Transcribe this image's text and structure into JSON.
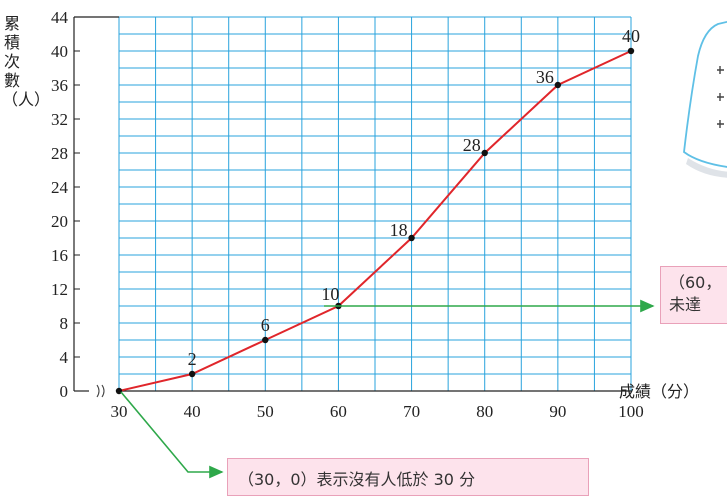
{
  "chart_data": {
    "type": "line",
    "x": [
      30,
      40,
      50,
      60,
      70,
      80,
      90,
      100
    ],
    "values": [
      0,
      2,
      6,
      10,
      18,
      28,
      36,
      40
    ],
    "data_labels": [
      "",
      "2",
      "6",
      "10",
      "18",
      "28",
      "36",
      "40"
    ],
    "xlabel": "成績（分）",
    "ylabel": "累積次數（人）",
    "x_ticks": [
      "30",
      "40",
      "50",
      "60",
      "70",
      "80",
      "90",
      "100"
    ],
    "y_ticks": [
      "0",
      "4",
      "8",
      "12",
      "16",
      "20",
      "24",
      "28",
      "32",
      "36",
      "40",
      "44"
    ],
    "xlim": [
      30,
      100
    ],
    "ylim": [
      0,
      44
    ],
    "grid": true,
    "x_axis_break": true,
    "colors": {
      "line": "#e0262b",
      "grid": "#29a3dd",
      "arrow": "#2ea84a",
      "callout_bg": "#fde3ec"
    }
  },
  "callouts": {
    "bottom": "（30，0）表示沒有人低於 30 分",
    "right_line1": "（60，",
    "right_line2": "未達"
  }
}
